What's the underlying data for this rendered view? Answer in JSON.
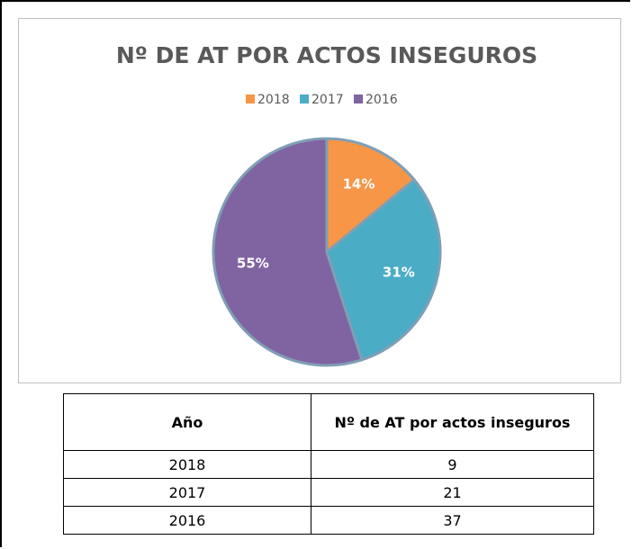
{
  "chart_data": {
    "type": "pie",
    "title": "Nº  DE AT POR ACTOS INSEGUROS",
    "categories": [
      "2018",
      "2017",
      "2016"
    ],
    "values": [
      14,
      31,
      55
    ],
    "value_labels": [
      "14%",
      "31%",
      "55%"
    ],
    "colors": [
      "#f79646",
      "#4bacc6",
      "#8064a2"
    ],
    "legend": "top"
  },
  "table": {
    "header": [
      "Año",
      "Nº  de AT por actos inseguros"
    ],
    "rows": [
      [
        "2018",
        "9"
      ],
      [
        "2017",
        "21"
      ],
      [
        "2016",
        "37"
      ]
    ]
  }
}
